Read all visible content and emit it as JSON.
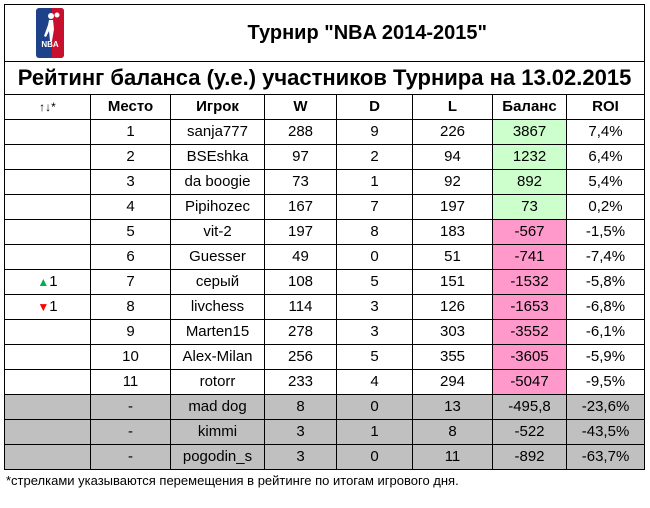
{
  "header": {
    "logo_text": "NBA",
    "title": "Турнир \"NBA 2014-2015\"",
    "subtitle": "Рейтинг баланса (у.е.) участников Турнира на 13.02.2015"
  },
  "columns": {
    "arrows": "↑↓*",
    "place": "Место",
    "player": "Игрок",
    "w": "W",
    "d": "D",
    "l": "L",
    "balance": "Баланс",
    "roi": "ROI"
  },
  "rows": [
    {
      "move": "",
      "move_dir": "",
      "place": "1",
      "player": "sanja777",
      "w": "288",
      "d": "9",
      "l": "226",
      "balance": "3867",
      "roi": "7,4%",
      "tone": "pos"
    },
    {
      "move": "",
      "move_dir": "",
      "place": "2",
      "player": "BSEshka",
      "w": "97",
      "d": "2",
      "l": "94",
      "balance": "1232",
      "roi": "6,4%",
      "tone": "pos"
    },
    {
      "move": "",
      "move_dir": "",
      "place": "3",
      "player": "da boogie",
      "w": "73",
      "d": "1",
      "l": "92",
      "balance": "892",
      "roi": "5,4%",
      "tone": "pos"
    },
    {
      "move": "",
      "move_dir": "",
      "place": "4",
      "player": "Pipihozec",
      "w": "167",
      "d": "7",
      "l": "197",
      "balance": "73",
      "roi": "0,2%",
      "tone": "pos"
    },
    {
      "move": "",
      "move_dir": "",
      "place": "5",
      "player": "vit-2",
      "w": "197",
      "d": "8",
      "l": "183",
      "balance": "-567",
      "roi": "-1,5%",
      "tone": "neg"
    },
    {
      "move": "",
      "move_dir": "",
      "place": "6",
      "player": "Guesser",
      "w": "49",
      "d": "0",
      "l": "51",
      "balance": "-741",
      "roi": "-7,4%",
      "tone": "neg"
    },
    {
      "move": "1",
      "move_dir": "up",
      "place": "7",
      "player": "серый",
      "w": "108",
      "d": "5",
      "l": "151",
      "balance": "-1532",
      "roi": "-5,8%",
      "tone": "neg"
    },
    {
      "move": "1",
      "move_dir": "down",
      "place": "8",
      "player": "livchess",
      "w": "114",
      "d": "3",
      "l": "126",
      "balance": "-1653",
      "roi": "-6,8%",
      "tone": "neg"
    },
    {
      "move": "",
      "move_dir": "",
      "place": "9",
      "player": "Marten15",
      "w": "278",
      "d": "3",
      "l": "303",
      "balance": "-3552",
      "roi": "-6,1%",
      "tone": "neg"
    },
    {
      "move": "",
      "move_dir": "",
      "place": "10",
      "player": "Alex-Milan",
      "w": "256",
      "d": "5",
      "l": "355",
      "balance": "-3605",
      "roi": "-5,9%",
      "tone": "neg"
    },
    {
      "move": "",
      "move_dir": "",
      "place": "11",
      "player": "rotorr",
      "w": "233",
      "d": "4",
      "l": "294",
      "balance": "-5047",
      "roi": "-9,5%",
      "tone": "neg"
    },
    {
      "move": "",
      "move_dir": "",
      "place": "-",
      "player": "mad dog",
      "w": "8",
      "d": "0",
      "l": "13",
      "balance": "-495,8",
      "roi": "-23,6%",
      "tone": "grey"
    },
    {
      "move": "",
      "move_dir": "",
      "place": "-",
      "player": "kimmi",
      "w": "3",
      "d": "1",
      "l": "8",
      "balance": "-522",
      "roi": "-43,5%",
      "tone": "grey"
    },
    {
      "move": "",
      "move_dir": "",
      "place": "-",
      "player": "pogodin_s",
      "w": "3",
      "d": "0",
      "l": "11",
      "balance": "-892",
      "roi": "-63,7%",
      "tone": "grey"
    }
  ],
  "footnote": "*стрелками указываются перемещения в рейтинге по итогам игрового дня.",
  "colors": {
    "positive": "#ccffcc",
    "negative": "#ff99cc",
    "inactive": "#c0c0c0",
    "up": "#00b050",
    "down": "#ff0000"
  }
}
